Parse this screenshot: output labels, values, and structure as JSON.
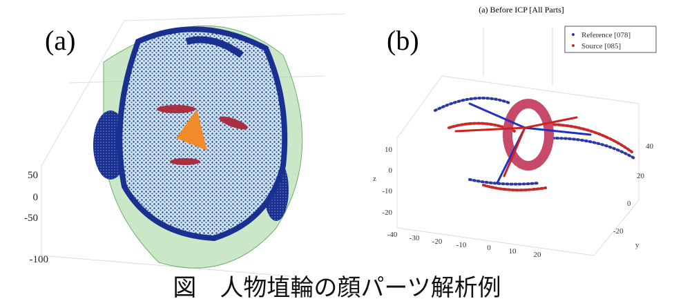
{
  "panels": [
    {
      "label": "(a)",
      "ticks": [
        "50",
        "0",
        "-50",
        "-100"
      ]
    },
    {
      "label": "(b)",
      "title": "(a) Before ICP [All Parts]",
      "legend": [
        "Reference [078]",
        "Source [085]"
      ],
      "z_label": "z",
      "z_ticks": [
        "10",
        "0",
        "-10",
        "-20"
      ],
      "x_ticks": [
        "-40",
        "-30",
        "-20",
        "-10",
        "0",
        "10",
        "20"
      ],
      "y_label": "y",
      "y_ticks": [
        "40",
        "20",
        "0",
        "-20"
      ]
    }
  ],
  "caption": "図　人物埴輪の顔パーツ解析例"
}
